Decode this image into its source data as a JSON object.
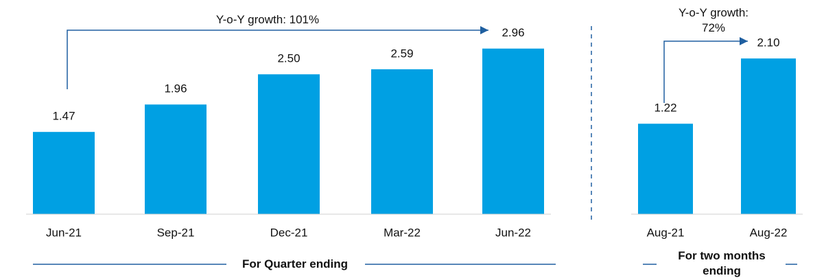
{
  "chart_data": [
    {
      "type": "bar",
      "categories": [
        "Jun-21",
        "Sep-21",
        "Dec-21",
        "Mar-22",
        "Jun-22"
      ],
      "values": [
        1.47,
        1.96,
        2.5,
        2.59,
        2.96
      ],
      "value_labels": [
        "1.47",
        "1.96",
        "2.50",
        "2.59",
        "2.96"
      ],
      "color": "#00a0e3",
      "annotation": "Y-o-Y growth: 101%",
      "group_label": "For Quarter ending"
    },
    {
      "type": "bar",
      "categories": [
        "Aug-21",
        "Aug-22"
      ],
      "values": [
        1.22,
        2.1
      ],
      "value_labels": [
        "1.22",
        "2.10"
      ],
      "color": "#00a0e3",
      "annotation": "Y-o-Y growth: 72%",
      "group_label": "For two months ending"
    }
  ]
}
